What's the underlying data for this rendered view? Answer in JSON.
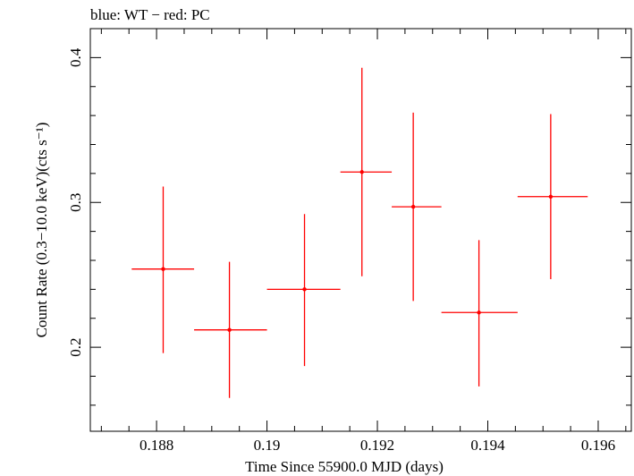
{
  "chart_data": {
    "type": "scatter",
    "title": "blue: WT − red: PC",
    "xlabel": "Time Since 55900.0 MJD (days)",
    "ylabel": "Count Rate (0.3−10.0 keV)(cts s⁻¹)",
    "xlim": [
      0.1868,
      0.1966
    ],
    "ylim": [
      0.142,
      0.42
    ],
    "x_major_ticks": [
      0.188,
      0.19,
      0.192,
      0.194,
      0.196
    ],
    "x_tick_labels": [
      "0.188",
      "0.19",
      "0.192",
      "0.194",
      "0.196"
    ],
    "x_minor_step": 0.0005,
    "y_major_ticks": [
      0.2,
      0.3,
      0.4
    ],
    "y_tick_labels": [
      "0.2",
      "0.3",
      "0.4"
    ],
    "y_minor_step": 0.02,
    "grid": false,
    "series": [
      {
        "color": "#ff0000",
        "points": [
          {
            "x": 0.18812,
            "xerr_lo": 0.18755,
            "xerr_hi": 0.18868,
            "y": 0.254,
            "yerr_lo": 0.196,
            "yerr_hi": 0.311
          },
          {
            "x": 0.18932,
            "xerr_lo": 0.18868,
            "xerr_hi": 0.19,
            "y": 0.212,
            "yerr_lo": 0.165,
            "yerr_hi": 0.259
          },
          {
            "x": 0.19068,
            "xerr_lo": 0.19,
            "xerr_hi": 0.19133,
            "y": 0.24,
            "yerr_lo": 0.187,
            "yerr_hi": 0.292
          },
          {
            "x": 0.19172,
            "xerr_lo": 0.19133,
            "xerr_hi": 0.19226,
            "y": 0.321,
            "yerr_lo": 0.249,
            "yerr_hi": 0.393
          },
          {
            "x": 0.19265,
            "xerr_lo": 0.19226,
            "xerr_hi": 0.19316,
            "y": 0.297,
            "yerr_lo": 0.232,
            "yerr_hi": 0.362
          },
          {
            "x": 0.19384,
            "xerr_lo": 0.19316,
            "xerr_hi": 0.19454,
            "y": 0.224,
            "yerr_lo": 0.173,
            "yerr_hi": 0.274
          },
          {
            "x": 0.19514,
            "xerr_lo": 0.19454,
            "xerr_hi": 0.19581,
            "y": 0.304,
            "yerr_lo": 0.247,
            "yerr_hi": 0.361
          }
        ]
      }
    ]
  }
}
